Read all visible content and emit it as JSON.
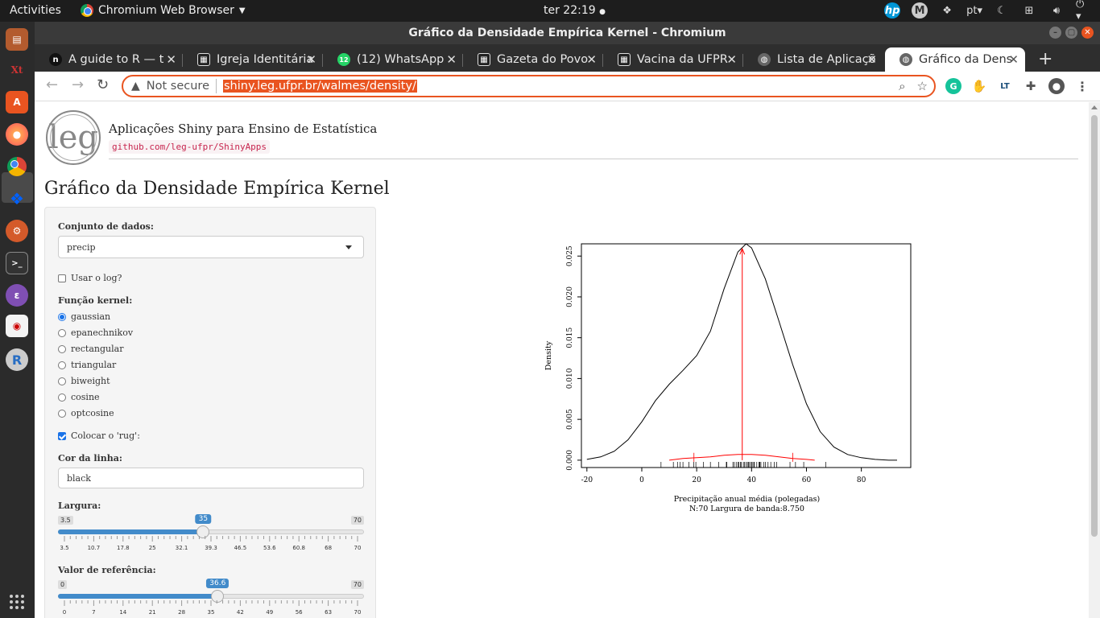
{
  "topbar": {
    "activities": "Activities",
    "app_name": "Chromium Web Browser",
    "clock": "ter 22:19",
    "lang": "pt"
  },
  "window": {
    "title": "Gráfico da Densidade Empírica Kernel - Chromium"
  },
  "tabs": [
    {
      "label": "A guide to R — t",
      "favicon_color": "#111111",
      "favicon_text": "n"
    },
    {
      "label": "Igreja Identitária",
      "favicon_color": "#222222",
      "favicon_text": "▦"
    },
    {
      "label": "(12) WhatsApp",
      "favicon_color": "#25d366",
      "favicon_text": "12"
    },
    {
      "label": "Gazeta do Povo",
      "favicon_color": "#222222",
      "favicon_text": "▦"
    },
    {
      "label": "Vacina da UFPR",
      "favicon_color": "#222222",
      "favicon_text": "▦"
    },
    {
      "label": "Lista de Aplicaçõ",
      "favicon_color": "#666666",
      "favicon_text": "◍"
    },
    {
      "label": "Gráfico da Dens",
      "favicon_color": "#666666",
      "favicon_text": "◍",
      "active": true
    }
  ],
  "omnibox": {
    "security": "Not secure",
    "url": "shiny.leg.ufpr.br/walmes/density/"
  },
  "header": {
    "logo_text": "leg",
    "title": "Aplicações Shiny para Ensino de Estatística",
    "repo": "github.com/leg-ufpr/ShinyApps"
  },
  "page_title": "Gráfico da Densidade Empírica Kernel",
  "panel": {
    "dataset_label": "Conjunto de dados:",
    "dataset_value": "precip",
    "log_label": "Usar o log?",
    "log_checked": false,
    "kernel_label": "Função kernel:",
    "kernels": [
      "gaussian",
      "epanechnikov",
      "rectangular",
      "triangular",
      "biweight",
      "cosine",
      "optcosine"
    ],
    "kernel_selected": "gaussian",
    "rug_label": "Colocar o 'rug':",
    "rug_checked": true,
    "color_label": "Cor da linha:",
    "color_value": "black",
    "width_slider": {
      "label": "Largura:",
      "min": 3.5,
      "max": 70,
      "value": 35,
      "min_label": "3.5",
      "max_label": "70",
      "value_label": "35",
      "ticks": [
        "3.5",
        "10.7",
        "17.8",
        "25",
        "32.1",
        "39.3",
        "46.5",
        "53.6",
        "60.8",
        "68",
        "70"
      ]
    },
    "ref_slider": {
      "label": "Valor de referência:",
      "min": 0,
      "max": 70,
      "value": 36.6,
      "min_label": "0",
      "max_label": "70",
      "value_label": "36.6",
      "ticks": [
        "0",
        "7",
        "14",
        "21",
        "28",
        "35",
        "42",
        "49",
        "56",
        "63",
        "70"
      ]
    }
  },
  "chart_data": {
    "type": "line",
    "xlabel": "Precipitação anual média (polegadas)",
    "sublabel": "N:70   Largura de banda:8.750",
    "ylabel": "Density",
    "xlim": [
      -22,
      98
    ],
    "ylim": [
      -0.0009,
      0.0265
    ],
    "xticks": [
      -20,
      0,
      20,
      40,
      60,
      80
    ],
    "xtick_labels": [
      "-20",
      "0",
      "20",
      "40",
      "60",
      "80"
    ],
    "yticks": [
      0.0,
      0.005,
      0.01,
      0.015,
      0.02,
      0.025
    ],
    "ytick_labels": [
      "0.000",
      "0.005",
      "0.010",
      "0.015",
      "0.020",
      "0.025"
    ],
    "series": [
      {
        "color": "#000000",
        "x": [
          -20,
          -15,
          -10,
          -5,
          0,
          5,
          10,
          15,
          20,
          25,
          30,
          35,
          38,
          40,
          45,
          50,
          55,
          60,
          65,
          70,
          75,
          80,
          85,
          90,
          93
        ],
        "y": [
          0.0001,
          0.0004,
          0.0011,
          0.0025,
          0.0047,
          0.0073,
          0.0093,
          0.011,
          0.0128,
          0.0158,
          0.021,
          0.0255,
          0.0265,
          0.026,
          0.0222,
          0.017,
          0.0117,
          0.0069,
          0.0035,
          0.0016,
          0.0007,
          0.0003,
          0.0001,
          0.0,
          0.0
        ]
      },
      {
        "color": "#ff0000",
        "x": [
          10,
          15,
          20,
          25,
          30,
          35,
          40,
          45,
          50,
          55,
          60,
          63
        ],
        "y": [
          0.0,
          0.0002,
          0.0003,
          0.0004,
          0.0006,
          0.0007,
          0.0007,
          0.0006,
          0.0004,
          0.0002,
          0.0001,
          0.0
        ]
      }
    ],
    "reference_x": 36.6,
    "reference_color": "#ff0000",
    "rug": [
      7.0,
      11.5,
      13.0,
      14.0,
      15.0,
      17.2,
      18.9,
      19.7,
      22.5,
      25.0,
      28.0,
      30.8,
      31.0,
      33.2,
      33.7,
      34.4,
      35.0,
      35.4,
      35.9,
      36.2,
      37.0,
      37.4,
      38.0,
      38.5,
      38.9,
      39.0,
      39.5,
      40.0,
      40.2,
      40.8,
      41.0,
      41.9,
      42.7,
      42.9,
      43.0,
      43.4,
      44.5,
      45.0,
      46.0,
      47.0,
      48.3,
      49.1,
      54.0,
      56.0,
      59.0,
      67.0
    ]
  }
}
